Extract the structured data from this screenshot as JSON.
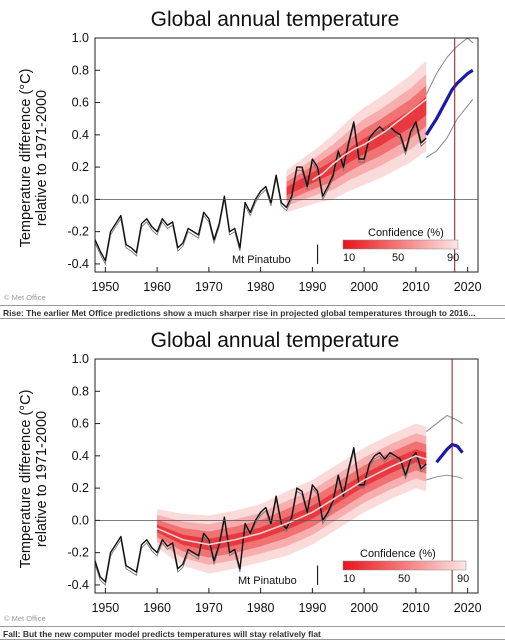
{
  "charts": [
    {
      "title": "Global annual temperature",
      "ylabel_line1": "Temperature difference (°C)",
      "ylabel_line2": "relative to 1971-2000",
      "annotation": "Mt Pinatubo",
      "legend_title": "Confidence (%)",
      "legend_ticks": [
        "10",
        "50",
        "90"
      ],
      "watermark": "© Met Office",
      "caption": "Rise: The earlier Met Office predictions show a much sharper rise in projected global temperatures through to 2016...",
      "x_ticks": [
        "1950",
        "1960",
        "1970",
        "1980",
        "1990",
        "2000",
        "2010",
        "2020"
      ],
      "y_ticks": [
        "1.0",
        "0.8",
        "0.6",
        "0.4",
        "0.2",
        "0.0",
        "-0.2",
        "-0.4"
      ]
    },
    {
      "title": "Global annual temperature",
      "ylabel_line1": "Temperature difference (°C)",
      "ylabel_line2": "relative to 1971-2000",
      "annotation": "Mt Pinatubo",
      "legend_title": "Confidence (%)",
      "legend_ticks": [
        "10",
        "50",
        "90"
      ],
      "watermark": "© Met Office",
      "caption": "Fall: But the new computer model predicts temperatures will stay relatively flat",
      "x_ticks": [
        "1950",
        "1960",
        "1970",
        "1980",
        "1990",
        "2000",
        "2010",
        "2020"
      ],
      "y_ticks": [
        "1.0",
        "0.8",
        "0.6",
        "0.4",
        "0.2",
        "0.0",
        "-0.2",
        "-0.4"
      ]
    }
  ],
  "chart_data": [
    {
      "type": "line",
      "title": "Global annual temperature",
      "xlabel": "",
      "ylabel": "Temperature difference (°C) relative to 1971-2000",
      "xlim": [
        1948,
        2022
      ],
      "ylim": [
        -0.45,
        1.0
      ],
      "grid": false,
      "legend_position": "bottom-right",
      "pinatubo_year": 1991,
      "forecast_marker_year": 2017.5,
      "series": [
        {
          "kind": "observed",
          "color": "#111111",
          "x": [
            1948,
            1949,
            1950,
            1951,
            1952,
            1953,
            1954,
            1955,
            1956,
            1957,
            1958,
            1959,
            1960,
            1961,
            1962,
            1963,
            1964,
            1965,
            1966,
            1967,
            1968,
            1969,
            1970,
            1971,
            1972,
            1973,
            1974,
            1975,
            1976,
            1977,
            1978,
            1979,
            1980,
            1981,
            1982,
            1983,
            1984,
            1985,
            1986,
            1987,
            1988,
            1989,
            1990,
            1991,
            1992,
            1993,
            1994,
            1995,
            1996,
            1997,
            1998,
            1999,
            2000,
            2001,
            2002,
            2003,
            2004,
            2005,
            2006,
            2007,
            2008,
            2009,
            2010,
            2011,
            2012
          ],
          "y": [
            -0.25,
            -0.32,
            -0.38,
            -0.2,
            -0.15,
            -0.1,
            -0.28,
            -0.3,
            -0.33,
            -0.15,
            -0.12,
            -0.17,
            -0.2,
            -0.12,
            -0.16,
            -0.14,
            -0.3,
            -0.27,
            -0.18,
            -0.2,
            -0.22,
            -0.08,
            -0.12,
            -0.25,
            -0.15,
            0.02,
            -0.2,
            -0.18,
            -0.3,
            -0.02,
            -0.08,
            0.0,
            0.05,
            0.08,
            -0.02,
            0.15,
            -0.02,
            -0.05,
            0.02,
            0.2,
            0.2,
            0.08,
            0.25,
            0.2,
            0.02,
            0.08,
            0.15,
            0.3,
            0.2,
            0.35,
            0.48,
            0.25,
            0.25,
            0.38,
            0.42,
            0.45,
            0.42,
            0.45,
            0.42,
            0.4,
            0.3,
            0.42,
            0.48,
            0.35,
            0.38
          ]
        },
        {
          "kind": "ensemble-median",
          "color": "#f3d0d0",
          "x": [
            1990,
            1992,
            1994,
            1996,
            1998,
            2000,
            2002,
            2004,
            2006,
            2008,
            2010,
            2012
          ],
          "y": [
            0.12,
            0.16,
            0.22,
            0.27,
            0.31,
            0.34,
            0.38,
            0.42,
            0.47,
            0.52,
            0.57,
            0.62
          ]
        },
        {
          "kind": "forecast",
          "color": "#1a1aa8",
          "x": [
            2012,
            2013,
            2014,
            2015,
            2016,
            2017,
            2018,
            2019,
            2020,
            2021
          ],
          "y": [
            0.4,
            0.45,
            0.5,
            0.56,
            0.62,
            0.68,
            0.72,
            0.75,
            0.78,
            0.8
          ]
        },
        {
          "kind": "forecast-upper",
          "color": "#888888",
          "x": [
            2012,
            2014,
            2016,
            2018,
            2020,
            2021
          ],
          "y": [
            0.65,
            0.78,
            0.88,
            0.95,
            1.0,
            0.97
          ]
        },
        {
          "kind": "forecast-lower",
          "color": "#888888",
          "x": [
            2012,
            2014,
            2016,
            2018,
            2020,
            2021
          ],
          "y": [
            0.26,
            0.3,
            0.38,
            0.5,
            0.58,
            0.62
          ]
        }
      ],
      "confidence_band": {
        "x": [
          1985,
          1988,
          1991,
          1994,
          1997,
          2000,
          2003,
          2006,
          2009,
          2012
        ],
        "center": [
          0.05,
          0.1,
          0.15,
          0.2,
          0.27,
          0.33,
          0.38,
          0.44,
          0.5,
          0.58
        ],
        "half_width_90": [
          0.13,
          0.15,
          0.17,
          0.2,
          0.22,
          0.24,
          0.25,
          0.26,
          0.27,
          0.28
        ]
      }
    },
    {
      "type": "line",
      "title": "Global annual temperature",
      "xlabel": "",
      "ylabel": "Temperature difference (°C) relative to 1971-2000",
      "xlim": [
        1948,
        2022
      ],
      "ylim": [
        -0.45,
        1.0
      ],
      "grid": false,
      "legend_position": "bottom-right",
      "pinatubo_year": 1991,
      "forecast_marker_year": 2017,
      "series": [
        {
          "kind": "observed",
          "color": "#111111",
          "x": [
            1948,
            1949,
            1950,
            1951,
            1952,
            1953,
            1954,
            1955,
            1956,
            1957,
            1958,
            1959,
            1960,
            1961,
            1962,
            1963,
            1964,
            1965,
            1966,
            1967,
            1968,
            1969,
            1970,
            1971,
            1972,
            1973,
            1974,
            1975,
            1976,
            1977,
            1978,
            1979,
            1980,
            1981,
            1982,
            1983,
            1984,
            1985,
            1986,
            1987,
            1988,
            1989,
            1990,
            1991,
            1992,
            1993,
            1994,
            1995,
            1996,
            1997,
            1998,
            1999,
            2000,
            2001,
            2002,
            2003,
            2004,
            2005,
            2006,
            2007,
            2008,
            2009,
            2010,
            2011,
            2012
          ],
          "y": [
            -0.25,
            -0.35,
            -0.38,
            -0.2,
            -0.15,
            -0.1,
            -0.28,
            -0.3,
            -0.32,
            -0.15,
            -0.12,
            -0.17,
            -0.2,
            -0.12,
            -0.16,
            -0.14,
            -0.3,
            -0.27,
            -0.18,
            -0.2,
            -0.22,
            -0.08,
            -0.12,
            -0.25,
            -0.15,
            0.02,
            -0.2,
            -0.18,
            -0.3,
            -0.02,
            -0.08,
            0.0,
            0.05,
            0.08,
            -0.02,
            0.15,
            -0.02,
            -0.05,
            0.02,
            0.2,
            0.18,
            0.05,
            0.22,
            0.18,
            0.0,
            0.05,
            0.12,
            0.28,
            0.15,
            0.32,
            0.45,
            0.22,
            0.22,
            0.35,
            0.4,
            0.42,
            0.38,
            0.42,
            0.4,
            0.38,
            0.28,
            0.38,
            0.42,
            0.32,
            0.35
          ]
        },
        {
          "kind": "ensemble-median",
          "color": "#f3d0d0",
          "x": [
            1960,
            1965,
            1970,
            1975,
            1980,
            1985,
            1990,
            1995,
            2000,
            2005,
            2010,
            2012
          ],
          "y": [
            -0.05,
            -0.12,
            -0.15,
            -0.12,
            -0.08,
            -0.02,
            0.05,
            0.15,
            0.25,
            0.33,
            0.4,
            0.38
          ]
        },
        {
          "kind": "forecast",
          "color": "#1a1aa8",
          "x": [
            2014,
            2015,
            2016,
            2017,
            2018,
            2019
          ],
          "y": [
            0.36,
            0.4,
            0.44,
            0.47,
            0.46,
            0.42
          ]
        },
        {
          "kind": "forecast-upper",
          "color": "#888888",
          "x": [
            2012,
            2014,
            2016,
            2018,
            2019
          ],
          "y": [
            0.55,
            0.6,
            0.65,
            0.62,
            0.6
          ]
        },
        {
          "kind": "forecast-lower",
          "color": "#888888",
          "x": [
            2012,
            2014,
            2016,
            2018,
            2019
          ],
          "y": [
            0.25,
            0.27,
            0.28,
            0.27,
            0.26
          ]
        }
      ],
      "confidence_band": {
        "x": [
          1960,
          1965,
          1970,
          1975,
          1980,
          1985,
          1990,
          1995,
          2000,
          2005,
          2010,
          2012
        ],
        "center": [
          -0.05,
          -0.12,
          -0.15,
          -0.12,
          -0.08,
          -0.02,
          0.05,
          0.15,
          0.25,
          0.33,
          0.4,
          0.38
        ],
        "half_width_90": [
          0.12,
          0.16,
          0.18,
          0.18,
          0.18,
          0.2,
          0.2,
          0.2,
          0.2,
          0.2,
          0.2,
          0.2
        ]
      }
    }
  ]
}
